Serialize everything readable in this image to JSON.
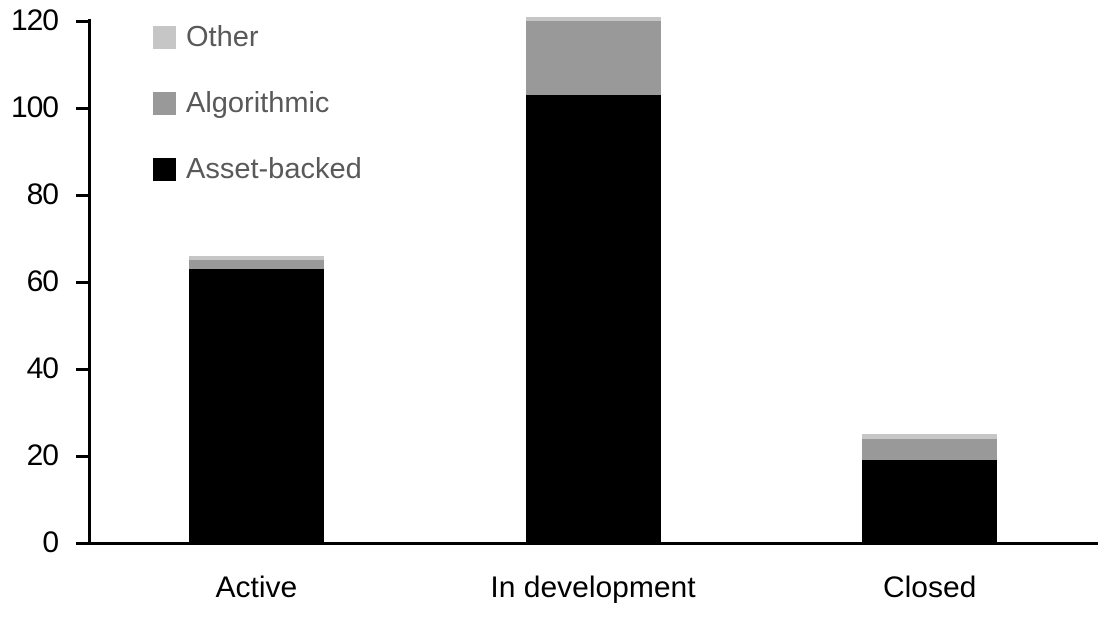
{
  "chart_data": {
    "type": "bar",
    "stacked": true,
    "title": "",
    "xlabel": "",
    "ylabel": "",
    "categories": [
      "Active",
      "In development",
      "Closed"
    ],
    "series": [
      {
        "name": "Asset-backed",
        "color": "#000000",
        "values": [
          63,
          103,
          19
        ]
      },
      {
        "name": "Algorithmic",
        "color": "#999999",
        "values": [
          2,
          17,
          5
        ]
      },
      {
        "name": "Other",
        "color": "#c6c6c6",
        "values": [
          1,
          1,
          1
        ]
      }
    ],
    "ylim": [
      0,
      120
    ],
    "y_ticks": [
      0,
      20,
      40,
      60,
      80,
      100,
      120
    ],
    "grid": false,
    "legend": {
      "position": "top-left",
      "order": [
        "Other",
        "Algorithmic",
        "Asset-backed"
      ]
    },
    "styles": {
      "background": "#ffffff",
      "axis_color": "#000000",
      "tick_label_color": "#000000",
      "category_label_color": "#000000",
      "legend_text_color": "#595959"
    }
  }
}
